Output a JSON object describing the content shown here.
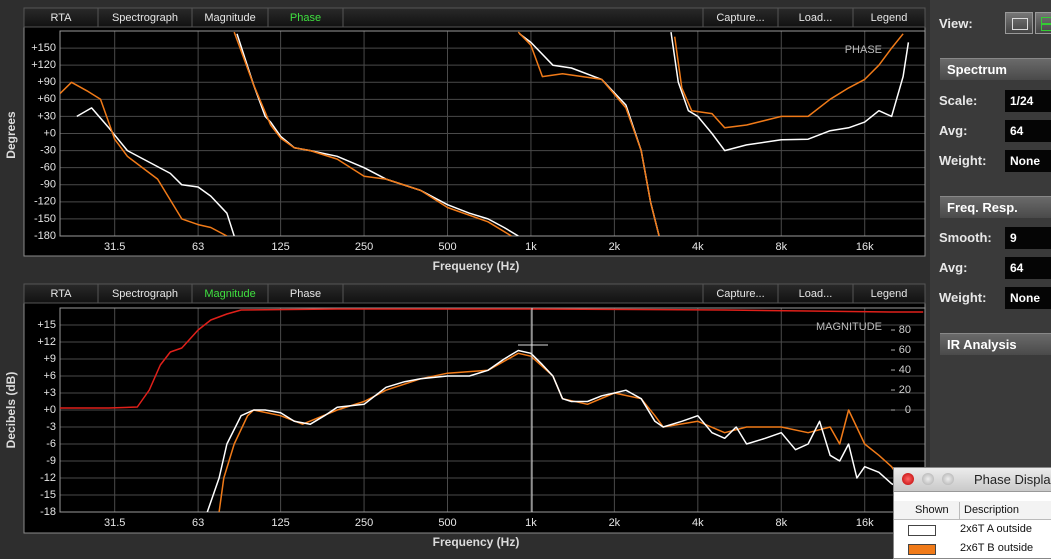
{
  "view_label": "View:",
  "toolbars": [
    {
      "left": [
        {
          "label": "RTA",
          "active": false
        },
        {
          "label": "Spectrograph",
          "active": false
        },
        {
          "label": "Magnitude",
          "active": false
        },
        {
          "label": "Phase",
          "active": true
        }
      ],
      "right": [
        {
          "label": "Capture...",
          "active": false
        },
        {
          "label": "Load...",
          "active": false
        },
        {
          "label": "Legend",
          "active": false
        }
      ]
    },
    {
      "left": [
        {
          "label": "RTA",
          "active": false
        },
        {
          "label": "Spectrograph",
          "active": false
        },
        {
          "label": "Magnitude",
          "active": true
        },
        {
          "label": "Phase",
          "active": false
        }
      ],
      "right": [
        {
          "label": "Capture...",
          "active": false
        },
        {
          "label": "Load...",
          "active": false
        },
        {
          "label": "Legend",
          "active": false
        }
      ]
    }
  ],
  "chart_data": [
    {
      "type": "line",
      "y_label": "Degrees",
      "x_label": "Frequency (Hz)",
      "annotation": "PHASE",
      "log_x": true,
      "grid": true,
      "xlim": [
        20,
        26400
      ],
      "ylim": [
        -180,
        180
      ],
      "xticks": [
        31.5,
        63,
        125,
        250,
        500,
        {
          "value": 1000,
          "label": "1k"
        },
        {
          "value": 2000,
          "label": "2k"
        },
        {
          "value": 4000,
          "label": "4k"
        },
        {
          "value": 8000,
          "label": "8k"
        },
        {
          "value": 16000,
          "label": "16k"
        }
      ],
      "yticks": [
        {
          "value": 150,
          "label": "+150"
        },
        {
          "value": 120,
          "label": "+120"
        },
        {
          "value": 90,
          "label": "+90"
        },
        {
          "value": 60,
          "label": "+60"
        },
        {
          "value": 30,
          "label": "+30"
        },
        {
          "value": 0,
          "label": "+0"
        },
        -30,
        -60,
        -90,
        -120,
        -150,
        -180
      ],
      "series": [
        {
          "name": "2x6T A outside",
          "color": "#ffffff",
          "x": [
            23,
            26,
            30,
            35,
            40,
            50,
            55,
            63,
            70,
            80,
            85,
            86,
            87,
            100,
            110,
            115,
            125,
            140,
            160,
            200,
            250,
            300,
            400,
            500,
            600,
            700,
            800,
            900,
            905,
            910,
            1000,
            1200,
            1400,
            1800,
            2200,
            2500,
            2700,
            2900,
            3000,
            3200,
            3400,
            3700,
            4000,
            4500,
            5000,
            6000,
            8000,
            10000,
            12000,
            14000,
            16000,
            18000,
            20000,
            22000,
            23000
          ],
          "values": [
            30,
            45,
            10,
            -30,
            -45,
            -70,
            -90,
            -94,
            -110,
            -140,
            -180,
            null,
            175,
            85,
            30,
            20,
            -5,
            -25,
            -30,
            -40,
            -60,
            -80,
            -100,
            -125,
            -140,
            -150,
            -165,
            -180,
            null,
            175,
            160,
            120,
            115,
            95,
            50,
            -30,
            -120,
            -180,
            null,
            178,
            90,
            40,
            30,
            0,
            -30,
            -20,
            -11,
            -10,
            5,
            10,
            20,
            40,
            30,
            100,
            160
          ]
        },
        {
          "name": "2x6T B outside",
          "color": "#f07a18",
          "x": [
            20,
            22,
            25,
            28,
            31.5,
            35,
            45,
            55,
            63,
            70,
            80,
            83,
            85,
            100,
            115,
            125,
            140,
            160,
            200,
            250,
            300,
            400,
            500,
            700,
            850,
            875,
            900,
            1000,
            1100,
            1300,
            1800,
            2200,
            2500,
            2700,
            2900,
            3100,
            3300,
            3500,
            3800,
            4500,
            5000,
            6000,
            8000,
            10000,
            12000,
            14000,
            16000,
            18000,
            20000,
            22000
          ],
          "values": [
            70,
            90,
            75,
            60,
            -10,
            -40,
            -80,
            -150,
            -160,
            -165,
            -180,
            null,
            178,
            85,
            15,
            -8,
            -25,
            -30,
            -45,
            -75,
            -80,
            -100,
            -130,
            -155,
            -180,
            null,
            178,
            155,
            100,
            105,
            95,
            45,
            -30,
            -120,
            -180,
            null,
            170,
            80,
            40,
            35,
            10,
            15,
            30,
            30,
            60,
            80,
            95,
            120,
            150,
            175
          ]
        }
      ]
    },
    {
      "type": "line",
      "y_label": "Decibels (dB)",
      "x_label": "Frequency (Hz)",
      "annotation": "MAGNITUDE",
      "log_x": true,
      "grid": true,
      "xlim": [
        20,
        26400
      ],
      "ylim": [
        -18,
        18
      ],
      "y2lim": [
        -102,
        102
      ],
      "xticks": [
        31.5,
        63,
        125,
        250,
        500,
        {
          "value": 1000,
          "label": "1k"
        },
        {
          "value": 2000,
          "label": "2k"
        },
        {
          "value": 4000,
          "label": "4k"
        },
        {
          "value": 8000,
          "label": "8k"
        },
        {
          "value": 16000,
          "label": "16k"
        }
      ],
      "yticks": [
        {
          "value": 15,
          "label": "+15"
        },
        {
          "value": 12,
          "label": "+12"
        },
        {
          "value": 9,
          "label": "+9"
        },
        {
          "value": 6,
          "label": "+6"
        },
        {
          "value": 3,
          "label": "+3"
        },
        {
          "value": 0,
          "label": "+0"
        },
        -3,
        -6,
        -9,
        -12,
        -15,
        -18
      ],
      "y2ticks": [
        80,
        60,
        40,
        20,
        0
      ],
      "series": [
        {
          "color": "#e0201a",
          "axis": "y2",
          "x": [
            20,
            25,
            30,
            38,
            42,
            46,
            50,
            55,
            63,
            70,
            80,
            90,
            200,
            1000,
            5000,
            10000,
            20000,
            26000
          ],
          "values": [
            2,
            2,
            2,
            3,
            20,
            45,
            58,
            62,
            80,
            90,
            96,
            100,
            101,
            101,
            100,
            99,
            98,
            98
          ]
        },
        {
          "color": "#f07a18",
          "x": [
            75,
            78,
            85,
            95,
            100,
            125,
            150,
            200,
            250,
            300,
            400,
            500,
            700,
            900,
            1000,
            1200,
            1300,
            1600,
            2000,
            2500,
            2800,
            3000,
            4000,
            5000,
            6000,
            8000,
            10000,
            12000,
            13000,
            14000,
            16000,
            18000,
            20000,
            22000
          ],
          "values": [
            -18,
            -12,
            -6,
            -1,
            0,
            -1,
            -2.5,
            0,
            1.5,
            3.5,
            5.5,
            6.5,
            7,
            10,
            9.5,
            6,
            2,
            1,
            3,
            2,
            -1,
            -3,
            -2,
            -4,
            -3,
            -3,
            -4,
            -3,
            -6,
            0,
            -6,
            -8,
            -10,
            -13
          ]
        },
        {
          "color": "#ffffff",
          "x": [
            68,
            75,
            80,
            90,
            100,
            110,
            125,
            140,
            160,
            180,
            200,
            250,
            300,
            350,
            400,
            500,
            600,
            700,
            800,
            900,
            1000,
            1100,
            1200,
            1300,
            1400,
            1600,
            1800,
            2000,
            2200,
            2500,
            2800,
            3000,
            3500,
            4000,
            4500,
            5000,
            5500,
            6000,
            7000,
            8000,
            9000,
            10000,
            11000,
            12000,
            13000,
            14000,
            15000,
            16000,
            18000,
            20000,
            22000
          ],
          "values": [
            -18,
            -12,
            -6,
            -1,
            0,
            0,
            -0.5,
            -2,
            -2.5,
            -1,
            0.5,
            1,
            4,
            5,
            5.5,
            6,
            6,
            7,
            9,
            10.5,
            10,
            8,
            6,
            2,
            1.5,
            1.5,
            2.5,
            3,
            3.5,
            2,
            -2,
            -3,
            -2,
            -1,
            -4,
            -5,
            -3,
            -6,
            -5,
            -4,
            -7,
            -6,
            -2,
            -8,
            -9,
            -6,
            -12,
            -10,
            -11,
            -13,
            -14
          ]
        }
      ]
    }
  ],
  "side_panel": [
    {
      "title": "Spectrum",
      "rows": [
        {
          "label": "Scale:",
          "value": "1/24"
        },
        {
          "label": "Avg:",
          "value": 64
        },
        {
          "label": "Weight:",
          "value": "None"
        }
      ]
    },
    {
      "title": "Freq. Resp.",
      "rows": [
        {
          "label": "Smooth:",
          "value": 9
        },
        {
          "label": "Avg:",
          "value": 64
        },
        {
          "label": "Weight:",
          "value": "None"
        }
      ]
    },
    {
      "title": "IR Analysis",
      "rows": []
    }
  ],
  "legend_window": {
    "title": "Phase Displa",
    "columns": [
      "Shown",
      "Description"
    ]
  }
}
